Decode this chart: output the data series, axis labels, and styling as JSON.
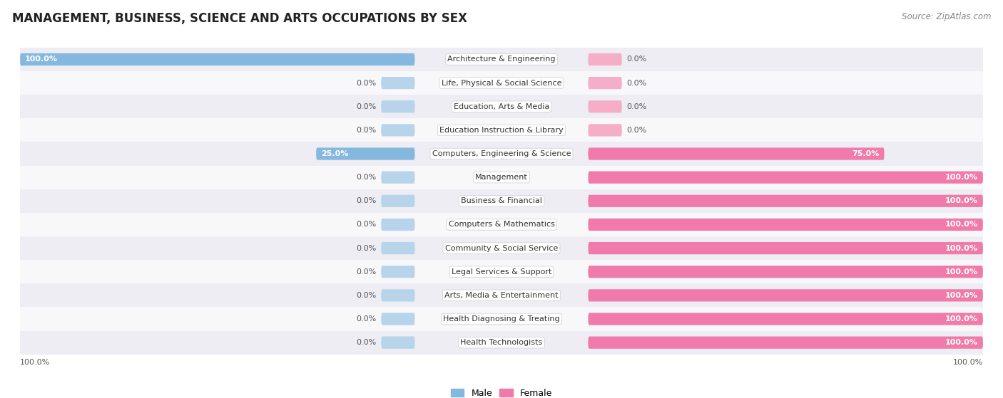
{
  "title": "MANAGEMENT, BUSINESS, SCIENCE AND ARTS OCCUPATIONS BY SEX",
  "source": "Source: ZipAtlas.com",
  "categories": [
    "Architecture & Engineering",
    "Life, Physical & Social Science",
    "Education, Arts & Media",
    "Education Instruction & Library",
    "Computers, Engineering & Science",
    "Management",
    "Business & Financial",
    "Computers & Mathematics",
    "Community & Social Service",
    "Legal Services & Support",
    "Arts, Media & Entertainment",
    "Health Diagnosing & Treating",
    "Health Technologists"
  ],
  "male_values": [
    100.0,
    0.0,
    0.0,
    0.0,
    25.0,
    0.0,
    0.0,
    0.0,
    0.0,
    0.0,
    0.0,
    0.0,
    0.0
  ],
  "female_values": [
    0.0,
    0.0,
    0.0,
    0.0,
    75.0,
    100.0,
    100.0,
    100.0,
    100.0,
    100.0,
    100.0,
    100.0,
    100.0
  ],
  "male_color": "#85b8de",
  "female_color": "#f07aaa",
  "male_color_light": "#b8d4ea",
  "female_color_light": "#f5adc8",
  "title_fontsize": 12,
  "source_fontsize": 8.5,
  "bar_label_fontsize": 8.0,
  "cat_label_fontsize": 8.0,
  "legend_fontsize": 9,
  "bg_row_even": "#ededf3",
  "bg_row_odd": "#f8f8fb"
}
